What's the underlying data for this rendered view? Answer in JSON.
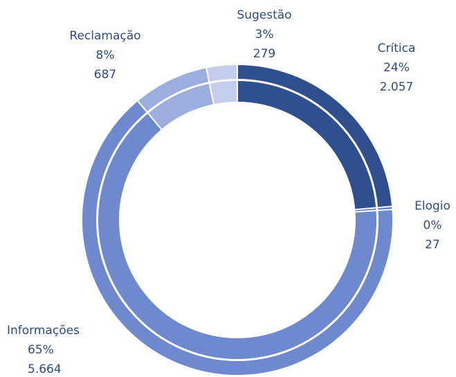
{
  "chart_data": {
    "type": "donut",
    "categories": [
      "Crítica",
      "Elogio",
      "Informações",
      "Reclamação",
      "Sugestão"
    ],
    "values": [
      2057,
      27,
      5664,
      687,
      279
    ],
    "value_labels": [
      "2.057",
      "27",
      "5.664",
      "687",
      "279"
    ],
    "percentages": [
      24,
      0,
      65,
      8,
      3
    ],
    "percentage_labels": [
      "24%",
      "0%",
      "65%",
      "8%",
      "3%"
    ],
    "colors": [
      "#2f4f8e",
      "#4d6fb9",
      "#6e89cd",
      "#9caedd",
      "#c4cdec"
    ]
  }
}
